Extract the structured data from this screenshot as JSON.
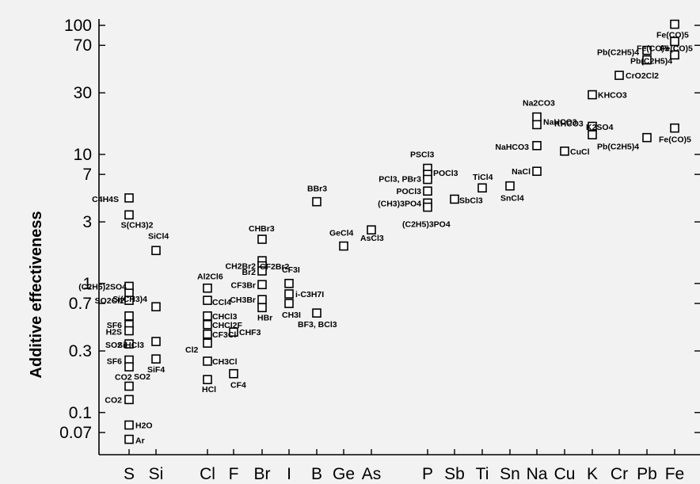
{
  "chart_data": {
    "type": "scatter",
    "title": "",
    "ylabel": "Additive effectiveness",
    "xlabel": "",
    "yscale": "log",
    "ylim": [
      0.05,
      110
    ],
    "yticks": [
      {
        "value": 100,
        "label": "100"
      },
      {
        "value": 70,
        "label": "70"
      },
      {
        "value": 30,
        "label": "30"
      },
      {
        "value": 10,
        "label": "10"
      },
      {
        "value": 7,
        "label": "7"
      },
      {
        "value": 3,
        "label": "3"
      },
      {
        "value": 1,
        "label": "1"
      },
      {
        "value": 0.7,
        "label": "0.7"
      },
      {
        "value": 0.3,
        "label": "0.3"
      },
      {
        "value": 0.1,
        "label": "0.1"
      },
      {
        "value": 0.07,
        "label": "0.07"
      }
    ],
    "categories": [
      "S",
      "Si",
      "Cl",
      "F",
      "Br",
      "I",
      "B",
      "Ge",
      "As",
      "P",
      "Sb",
      "Ti",
      "Sn",
      "Na",
      "Cu",
      "K",
      "Cr",
      "Pb",
      "Fe"
    ],
    "points": [
      {
        "category": "S",
        "y": 4.6,
        "label": "C4H4S"
      },
      {
        "category": "S",
        "y": 3.4,
        "label": "S(CH3)2"
      },
      {
        "category": "S",
        "y": 0.95,
        "label": "(C2H5)2SO4"
      },
      {
        "category": "S",
        "y": 0.84,
        "label": ""
      },
      {
        "category": "S",
        "y": 0.74,
        "label": "SO2Cl2"
      },
      {
        "category": "S",
        "y": 0.56,
        "label": ""
      },
      {
        "category": "S",
        "y": 0.48,
        "label": "SF6"
      },
      {
        "category": "S",
        "y": 0.43,
        "label": "H2S"
      },
      {
        "category": "S",
        "y": 0.34,
        "label": "SO2"
      },
      {
        "category": "S",
        "y": 0.255,
        "label": "SF6"
      },
      {
        "category": "S",
        "y": 0.226,
        "label": "SO2"
      },
      {
        "category": "S",
        "y": 0.16,
        "label": "CO2"
      },
      {
        "category": "S",
        "y": 0.126,
        "label": "CO2"
      },
      {
        "category": "S",
        "y": 0.08,
        "label": "H2O"
      },
      {
        "category": "S",
        "y": 0.062,
        "label": "Ar"
      },
      {
        "category": "Si",
        "y": 1.8,
        "label": "SiCl4"
      },
      {
        "category": "Si",
        "y": 0.66,
        "label": "Si(CH3)4"
      },
      {
        "category": "Si",
        "y": 0.355,
        "label": "SiHCl3"
      },
      {
        "category": "Si",
        "y": 0.26,
        "label": "SiF4"
      },
      {
        "category": "Cl",
        "y": 0.92,
        "label": "Al2Cl6"
      },
      {
        "category": "Cl",
        "y": 0.74,
        "label": "CCl4"
      },
      {
        "category": "Cl",
        "y": 0.56,
        "label": "CHCl3"
      },
      {
        "category": "Cl",
        "y": 0.48,
        "label": "CHCl2F"
      },
      {
        "category": "Cl",
        "y": 0.405,
        "label": "CF3Cl"
      },
      {
        "category": "Cl",
        "y": 0.345,
        "label": "Cl2"
      },
      {
        "category": "Cl",
        "y": 0.25,
        "label": "CH3Cl"
      },
      {
        "category": "Cl",
        "y": 0.18,
        "label": "HCl"
      },
      {
        "category": "F",
        "y": 0.42,
        "label": "CHF3"
      },
      {
        "category": "F",
        "y": 0.2,
        "label": "CF4"
      },
      {
        "category": "Br",
        "y": 2.2,
        "label": "CHBr3"
      },
      {
        "category": "Br",
        "y": 1.5,
        "label": "CF2Br2"
      },
      {
        "category": "Br",
        "y": 1.37,
        "label": "CH2Br2"
      },
      {
        "category": "Br",
        "y": 1.25,
        "label": "Br2"
      },
      {
        "category": "Br",
        "y": 0.98,
        "label": "CF3Br"
      },
      {
        "category": "Br",
        "y": 0.75,
        "label": "CH3Br"
      },
      {
        "category": "Br",
        "y": 0.65,
        "label": "HBr"
      },
      {
        "category": "I",
        "y": 1.0,
        "label": "CF3I"
      },
      {
        "category": "I",
        "y": 0.83,
        "label": "i-C3H7I"
      },
      {
        "category": "I",
        "y": 0.7,
        "label": "CH3I"
      },
      {
        "category": "B",
        "y": 4.3,
        "label": "BBr3"
      },
      {
        "category": "B",
        "y": 0.59,
        "label": "BF3, BCl3"
      },
      {
        "category": "Ge",
        "y": 1.95,
        "label": "GeCl4"
      },
      {
        "category": "As",
        "y": 2.6,
        "label": "AsCl3"
      },
      {
        "category": "P",
        "y": 7.8,
        "label": "PSCl3"
      },
      {
        "category": "P",
        "y": 7.0,
        "label": "POCl3"
      },
      {
        "category": "P",
        "y": 6.4,
        "label": "PCl3, PBr3"
      },
      {
        "category": "P",
        "y": 5.2,
        "label": "POCl3"
      },
      {
        "category": "P",
        "y": 4.2,
        "label": "(CH3)3PO4"
      },
      {
        "category": "P",
        "y": 3.9,
        "label": "(C2H5)3PO4"
      },
      {
        "category": "Sb",
        "y": 4.5,
        "label": "SbCl3"
      },
      {
        "category": "Ti",
        "y": 5.5,
        "label": "TiCl4"
      },
      {
        "category": "Sn",
        "y": 5.7,
        "label": "SnCl4"
      },
      {
        "category": "Na",
        "y": 19.5,
        "label": "Na2CO3"
      },
      {
        "category": "Na",
        "y": 17.0,
        "label": "NaHCO3"
      },
      {
        "category": "Na",
        "y": 11.7,
        "label": "NaHCO3"
      },
      {
        "category": "Na",
        "y": 7.4,
        "label": "NaCl"
      },
      {
        "category": "Cu",
        "y": 10.6,
        "label": "CuCl"
      },
      {
        "category": "K",
        "y": 29,
        "label": "KHCO3"
      },
      {
        "category": "K",
        "y": 16.5,
        "label": "KHCO3"
      },
      {
        "category": "K",
        "y": 14.2,
        "label": "K2SO4"
      },
      {
        "category": "Cr",
        "y": 41,
        "label": "CrO2Cl2"
      },
      {
        "category": "Pb",
        "y": 64,
        "label": "Pb(C2H5)4"
      },
      {
        "category": "Pb",
        "y": 54,
        "label": "Pb(C2H5)4"
      },
      {
        "category": "Pb",
        "y": 13.5,
        "label": "Pb(C2H5)4"
      },
      {
        "category": "Fe",
        "y": 102,
        "label": "Fe(CO)5"
      },
      {
        "category": "Fe",
        "y": 75,
        "label": "Fe(CO)5"
      },
      {
        "category": "Fe",
        "y": 59,
        "label": "Fe(CO)5"
      },
      {
        "category": "Fe",
        "y": 16,
        "label": "Fe(CO)5"
      }
    ]
  }
}
